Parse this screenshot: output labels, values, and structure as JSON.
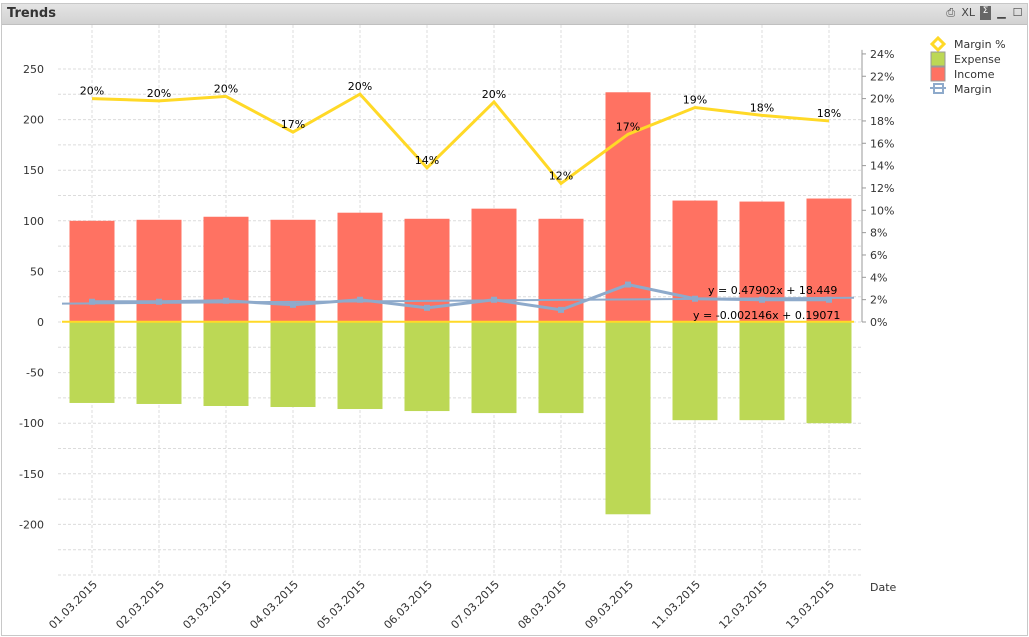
{
  "window": {
    "title": "Trends",
    "icons": [
      "print-icon",
      "xl-icon",
      "cycle-icon",
      "minimize-icon",
      "maximize-icon"
    ],
    "xl_label": "XL"
  },
  "chart_data": {
    "type": "bar+line",
    "xlabel": "Date",
    "categories": [
      "01.03.2015",
      "02.03.2015",
      "03.03.2015",
      "04.03.2015",
      "05.03.2015",
      "06.03.2015",
      "07.03.2015",
      "08.03.2015",
      "09.03.2015",
      "11.03.2015",
      "12.03.2015",
      "13.03.2015"
    ],
    "left_axis": {
      "ylim": [
        -250,
        260
      ],
      "ticks": [
        250,
        200,
        150,
        100,
        50,
        0,
        -50,
        -100,
        -150,
        -200
      ]
    },
    "right_axis": {
      "ylim": [
        0,
        24
      ],
      "ticks": [
        "24%",
        "22%",
        "20%",
        "18%",
        "16%",
        "14%",
        "12%",
        "10%",
        "8%",
        "6%",
        "4%",
        "2%",
        "0%"
      ]
    },
    "series": [
      {
        "name": "Income",
        "type": "bar",
        "color": "#ff7262",
        "values": [
          100,
          101,
          104,
          101,
          108,
          102,
          112,
          102,
          227,
          120,
          119,
          122
        ]
      },
      {
        "name": "Expense",
        "type": "bar",
        "color": "#bcd855",
        "values": [
          -80,
          -81,
          -83,
          -84,
          -86,
          -88,
          -90,
          -90,
          -190,
          -97,
          -97,
          -100
        ]
      },
      {
        "name": "Margin",
        "type": "line",
        "axis": "left",
        "color": "#8eaacb",
        "values": [
          20,
          20,
          21,
          17,
          22,
          14,
          22,
          12,
          37,
          23,
          22,
          22
        ]
      },
      {
        "name": "Margin %",
        "type": "line",
        "axis": "right",
        "color": "#ffd927",
        "values": [
          20.0,
          19.8,
          20.2,
          17.0,
          20.4,
          13.8,
          19.7,
          12.4,
          16.8,
          19.2,
          18.5,
          18.0
        ],
        "labels": [
          "20%",
          "20%",
          "20%",
          "17%",
          "20%",
          "14%",
          "20%",
          "12%",
          "17%",
          "19%",
          "18%",
          "18%"
        ]
      }
    ],
    "trendlines": [
      {
        "series": "Margin",
        "equation": "y = 0.47902x + 18.449",
        "slope": 0.47902,
        "intercept": 18.449
      },
      {
        "series": "Margin %",
        "equation": "y = -0.002146x + 0.19071",
        "slope": -0.002146,
        "intercept": 0.19071
      }
    ],
    "legend": {
      "placement": "top-right",
      "items": [
        "Margin %",
        "Expense",
        "Income",
        "Margin"
      ]
    },
    "grid": true
  }
}
